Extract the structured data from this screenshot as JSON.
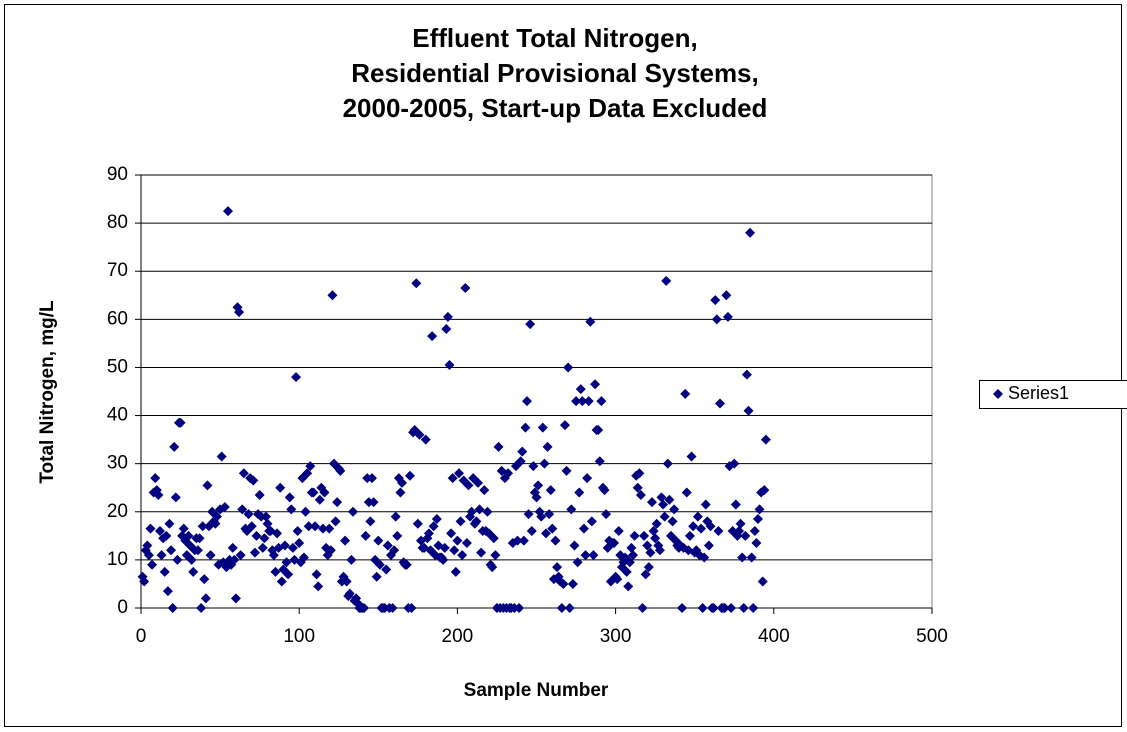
{
  "chart_data": {
    "type": "scatter",
    "title": [
      "Effluent Total Nitrogen,",
      "Residential Provisional Systems,",
      "2000-2005, Start-up Data Excluded"
    ],
    "x_label": "Sample Number",
    "y_label": "Total Nitrogen, mg/L",
    "xlim": [
      0,
      500
    ],
    "xticks": [
      0,
      100,
      200,
      300,
      400,
      500
    ],
    "ylim": [
      0,
      90
    ],
    "yticks": [
      0,
      10,
      20,
      30,
      40,
      50,
      60,
      70,
      80,
      90
    ],
    "grid": true,
    "legend": "right",
    "x": [
      1,
      2,
      3,
      4,
      5,
      6,
      7,
      8,
      9,
      10,
      11,
      12,
      13,
      14,
      15,
      16,
      17,
      18,
      19,
      20,
      21,
      22,
      23,
      24,
      25,
      26,
      27,
      28,
      29,
      30,
      31,
      32,
      33,
      34,
      35,
      36,
      37,
      38,
      39,
      40,
      41,
      42,
      43,
      44,
      45,
      46,
      47,
      48,
      49,
      50,
      51,
      52,
      53,
      54,
      55,
      56,
      57,
      58,
      59,
      60,
      61,
      62,
      63,
      64,
      65,
      66,
      67,
      68,
      69,
      70,
      71,
      72,
      73,
      74,
      75,
      76,
      77,
      78,
      79,
      80,
      81,
      82,
      83,
      84,
      85,
      86,
      87,
      88,
      89,
      90,
      91,
      92,
      93,
      94,
      95,
      96,
      97,
      98,
      99,
      100,
      101,
      102,
      103,
      104,
      105,
      106,
      107,
      108,
      109,
      110,
      111,
      112,
      113,
      114,
      115,
      116,
      117,
      118,
      119,
      120,
      121,
      122,
      123,
      124,
      125,
      126,
      127,
      128,
      129,
      130,
      131,
      132,
      133,
      134,
      135,
      136,
      137,
      138,
      139,
      140,
      141,
      142,
      143,
      144,
      145,
      146,
      147,
      148,
      149,
      150,
      151,
      152,
      153,
      154,
      155,
      156,
      157,
      158,
      159,
      160,
      161,
      162,
      163,
      164,
      165,
      166,
      167,
      168,
      169,
      170,
      171,
      172,
      173,
      174,
      175,
      176,
      177,
      178,
      179,
      180,
      181,
      182,
      183,
      184,
      185,
      186,
      187,
      188,
      189,
      190,
      191,
      192,
      193,
      194,
      195,
      196,
      197,
      198,
      199,
      200,
      201,
      202,
      203,
      204,
      205,
      206,
      207,
      208,
      209,
      210,
      211,
      212,
      213,
      214,
      215,
      216,
      217,
      218,
      219,
      220,
      221,
      222,
      223,
      224,
      225,
      226,
      227,
      228,
      229,
      230,
      231,
      232,
      233,
      234,
      235,
      236,
      237,
      238,
      239,
      240,
      241,
      242,
      243,
      244,
      245,
      246,
      247,
      248,
      249,
      250,
      251,
      252,
      253,
      254,
      255,
      256,
      257,
      258,
      259,
      260,
      261,
      262,
      263,
      264,
      265,
      266,
      267,
      268,
      269,
      270,
      271,
      272,
      273,
      274,
      275,
      276,
      277,
      278,
      279,
      280,
      281,
      282,
      283,
      284,
      285,
      286,
      287,
      288,
      289,
      290,
      291,
      292,
      293,
      294,
      295,
      296,
      297,
      298,
      299,
      300,
      301,
      302,
      303,
      304,
      305,
      306,
      307,
      308,
      309,
      310,
      311,
      312,
      313,
      314,
      315,
      316,
      317,
      318,
      319,
      320,
      321,
      322,
      323,
      324,
      325,
      326,
      327,
      328,
      329,
      330,
      331,
      332,
      333,
      334,
      335,
      336,
      337,
      338,
      339,
      340,
      341,
      342,
      343,
      344,
      345,
      346,
      347,
      348,
      349,
      350,
      351,
      352,
      353,
      354,
      355,
      356,
      357,
      358,
      359,
      360,
      361,
      362,
      363,
      364,
      365,
      366,
      367,
      368,
      369,
      370,
      371,
      372,
      373,
      374,
      375,
      376,
      377,
      378,
      379,
      380,
      381,
      382,
      383,
      384,
      385,
      386,
      387,
      388,
      389,
      390,
      391,
      392,
      393,
      394,
      395
    ],
    "series": [
      {
        "name": "Series1",
        "color": "#000080",
        "values": [
          6.5,
          5.5,
          12,
          13,
          11,
          16.5,
          9,
          24,
          27,
          24.5,
          23.5,
          16,
          11,
          14.5,
          7.5,
          15,
          3.5,
          17.5,
          12,
          0,
          33.5,
          23,
          10,
          38.5,
          38.5,
          15,
          16.5,
          14,
          11,
          15,
          13,
          10,
          7.5,
          12,
          14.5,
          12,
          14.5,
          0,
          17,
          6,
          2,
          25.5,
          17,
          11,
          20,
          18,
          17.5,
          19,
          9,
          20.5,
          31.5,
          9.5,
          21,
          8.5,
          82.5,
          10,
          9,
          12.5,
          10,
          2,
          62.5,
          61.5,
          11,
          20.5,
          28,
          16.5,
          16,
          19.5,
          27,
          17,
          26.5,
          11.5,
          15,
          19.5,
          23.5,
          19,
          12.5,
          14.5,
          19,
          17.5,
          16,
          16,
          12,
          11,
          7.5,
          15.5,
          12.5,
          25,
          5.5,
          8,
          13,
          9.5,
          7,
          23,
          20.5,
          12.5,
          10,
          48,
          16,
          13.5,
          9.5,
          27,
          10.5,
          20,
          28,
          17,
          29.5,
          24,
          24,
          17,
          7,
          4.5,
          22.5,
          25,
          16.5,
          24,
          12.5,
          11,
          16.5,
          12,
          65,
          30,
          18,
          22,
          29,
          28.5,
          5.5,
          6.5,
          14,
          5.5,
          2.5,
          3,
          10,
          20,
          1.5,
          2,
          1,
          0,
          0,
          0,
          0,
          15,
          27,
          22,
          18,
          27,
          22,
          10,
          6.5,
          14,
          9,
          0,
          0,
          0,
          8,
          13,
          0,
          11,
          0,
          12,
          19,
          15,
          27,
          24,
          26,
          9.5,
          9,
          9,
          0,
          27.5,
          0,
          36.5,
          37,
          67.5,
          17.5,
          36,
          14,
          12.5,
          12.5,
          35,
          14.5,
          15.5,
          12,
          56.5,
          17,
          11,
          18.5,
          13,
          10.5,
          10.5,
          10,
          12.5,
          58,
          60.5,
          50.5,
          15.5,
          27,
          12,
          7.5,
          14,
          28,
          18,
          11,
          26.5,
          66.5,
          13.5,
          25.5,
          19,
          20,
          27,
          17.5,
          18,
          26,
          20.5,
          11.5,
          16,
          24.5,
          16,
          20,
          15.5,
          9,
          8.5,
          14.5,
          11,
          0,
          33.5,
          0,
          28.5,
          0,
          27,
          0,
          28,
          0,
          0,
          13.5,
          0,
          29.5,
          14,
          0,
          30.5,
          32.5,
          14,
          37.5,
          43,
          19.5,
          59,
          16,
          29.5,
          24,
          23,
          25.5,
          20,
          19,
          37.5,
          30,
          15.5,
          33.5,
          19.5,
          24.5,
          16.5,
          6,
          14,
          8.5,
          6.5,
          5.5,
          0,
          5,
          38,
          28.5,
          50,
          0,
          20.5,
          5,
          13,
          43,
          9.5,
          24,
          45.5,
          43,
          16.5,
          11,
          27,
          43,
          59.5,
          18,
          11,
          46.5,
          37,
          37,
          30.5,
          43,
          25,
          24.5,
          19.5,
          12.5,
          14,
          5.5,
          13.5,
          13.5,
          6.5,
          6,
          16,
          11,
          8.5,
          9.5,
          10.5,
          7.5,
          4.5,
          9.5,
          12.5,
          11,
          15,
          27.5,
          25,
          28,
          23.5,
          0,
          15,
          7,
          13,
          8.5,
          11.5,
          22,
          16,
          14.5,
          17.5,
          13,
          12,
          23,
          21.5,
          19,
          68,
          30,
          22.5,
          15,
          18,
          20.5,
          14,
          13,
          12.5,
          13,
          0,
          12.5,
          44.5,
          24,
          12,
          15,
          31.5,
          17,
          11.5,
          12,
          19,
          11,
          16.5,
          0,
          10.5,
          21.5,
          18,
          13,
          17,
          0,
          0,
          64,
          60,
          16,
          42.5,
          0,
          0,
          0,
          65,
          60.5,
          29.5,
          0,
          16,
          30,
          21.5,
          15,
          16,
          17.5,
          10.5,
          0,
          15,
          48.5,
          41,
          78,
          10.5,
          0,
          16,
          13.5,
          18.5,
          20.5,
          24,
          5.5,
          24.5,
          35
        ]
      }
    ]
  }
}
